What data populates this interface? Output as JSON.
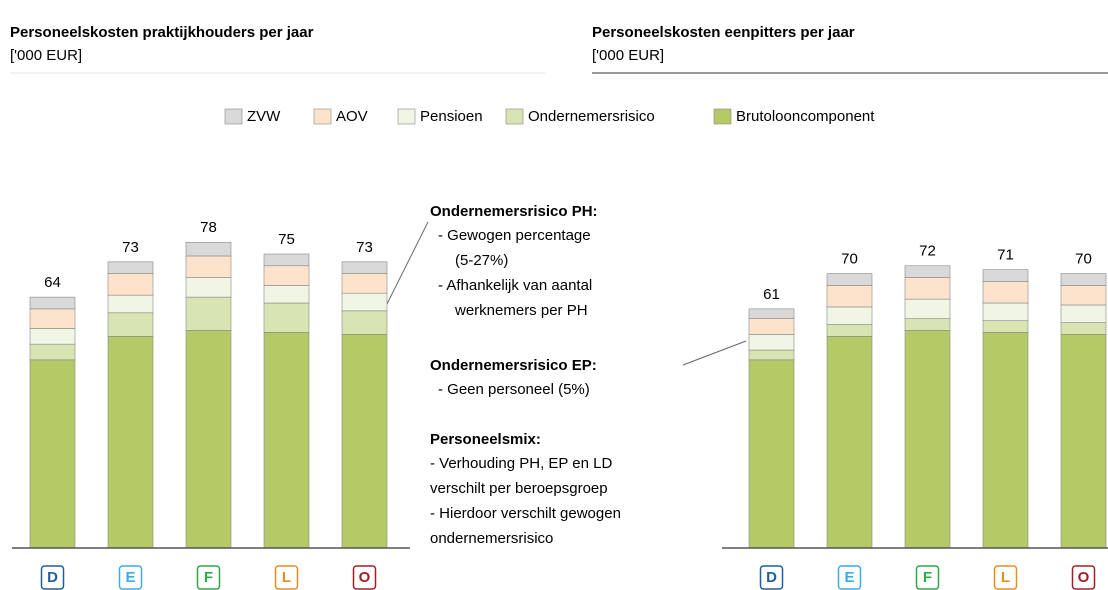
{
  "chart_data": [
    {
      "type": "bar",
      "stacked": true,
      "title": "Personeelskosten praktijkhouders per jaar",
      "subtitle": "['000 EUR]",
      "categories": [
        "D",
        "E",
        "F",
        "L",
        "O"
      ],
      "category_colors": [
        "#1f5f9a",
        "#3aaee0",
        "#2ea84a",
        "#e98c1f",
        "#a31f24"
      ],
      "series": [
        {
          "name": "Brutolooncomponent",
          "color": "#b5c966",
          "values": [
            48,
            54,
            55.5,
            55,
            54.5
          ]
        },
        {
          "name": "Ondernemersrisico",
          "color": "#d8e4b2",
          "values": [
            4,
            6,
            8.5,
            7.5,
            6
          ]
        },
        {
          "name": "Pensioen",
          "color": "#f1f5e3",
          "values": [
            4,
            4.5,
            5,
            4.5,
            4.5
          ]
        },
        {
          "name": "AOV",
          "color": "#fde3cc",
          "values": [
            5,
            5.5,
            5.5,
            5,
            5
          ]
        },
        {
          "name": "ZVW",
          "color": "#d9d9d9",
          "values": [
            3,
            3,
            3.5,
            3,
            3
          ]
        }
      ],
      "totals": [
        64,
        73,
        78,
        75,
        73
      ]
    },
    {
      "type": "bar",
      "stacked": true,
      "title": "Personeelskosten eenpitters per jaar",
      "subtitle": "['000 EUR]",
      "categories": [
        "D",
        "E",
        "F",
        "L",
        "O"
      ],
      "category_colors": [
        "#1f5f9a",
        "#3aaee0",
        "#2ea84a",
        "#e98c1f",
        "#a31f24"
      ],
      "series": [
        {
          "name": "Brutolooncomponent",
          "color": "#b5c966",
          "values": [
            48,
            54,
            55.5,
            55,
            54.5
          ]
        },
        {
          "name": "Ondernemersrisico",
          "color": "#d8e4b2",
          "values": [
            2.5,
            3,
            3,
            3,
            3
          ]
        },
        {
          "name": "Pensioen",
          "color": "#f1f5e3",
          "values": [
            4,
            4.5,
            5,
            4.5,
            4.5
          ]
        },
        {
          "name": "AOV",
          "color": "#fde3cc",
          "values": [
            4,
            5.5,
            5.5,
            5.5,
            5
          ]
        },
        {
          "name": "ZVW",
          "color": "#d9d9d9",
          "values": [
            2.5,
            3,
            3,
            3,
            3
          ]
        }
      ],
      "totals": [
        61,
        70,
        72,
        71,
        70
      ]
    }
  ],
  "annotations": [
    {
      "title": "Ondernemersrisico PH:",
      "lines": [
        "- Gewogen percentage",
        "(5-27%)",
        "- Afhankelijk van aantal",
        "werknemers per PH"
      ]
    },
    {
      "title": "Ondernemersrisico EP:",
      "lines": [
        "- Geen personeel (5%)"
      ]
    },
    {
      "title": "Personeelsmix:",
      "lines": [
        "- Verhouding PH, EP en LD",
        "verschilt per beroepsgroep",
        "- Hierdoor verschilt gewogen",
        "ondernemersrisico"
      ]
    }
  ]
}
